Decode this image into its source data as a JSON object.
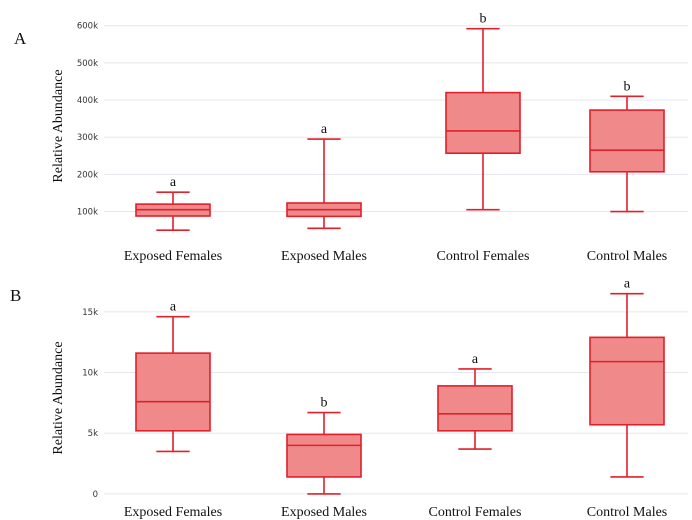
{
  "chart_data": [
    {
      "type": "box",
      "panel": "A",
      "ylabel": "Relative Abundance",
      "yticks": [
        {
          "v": 100000,
          "label": "100k"
        },
        {
          "v": 200000,
          "label": "200k"
        },
        {
          "v": 300000,
          "label": "300k"
        },
        {
          "v": 400000,
          "label": "400k"
        },
        {
          "v": 500000,
          "label": "500k"
        },
        {
          "v": 600000,
          "label": "600k"
        }
      ],
      "ylim": [
        45000,
        610000
      ],
      "categories": [
        "Exposed Females",
        "Exposed Males",
        "Control Females",
        "Control Males"
      ],
      "boxes": [
        {
          "min": 50000,
          "q1": 88000,
          "median": 105000,
          "q3": 120000,
          "max": 152000,
          "sig": "a"
        },
        {
          "min": 55000,
          "q1": 87000,
          "median": 105000,
          "q3": 123000,
          "max": 295000,
          "sig": "a"
        },
        {
          "min": 105000,
          "q1": 257000,
          "median": 317000,
          "q3": 420000,
          "max": 592000,
          "sig": "b"
        },
        {
          "min": 100000,
          "q1": 207000,
          "median": 265000,
          "q3": 373000,
          "max": 410000,
          "sig": "b"
        }
      ]
    },
    {
      "type": "box",
      "panel": "B",
      "ylabel": "Relative Abundance",
      "yticks": [
        {
          "v": 0,
          "label": "0"
        },
        {
          "v": 5000,
          "label": "5k"
        },
        {
          "v": 10000,
          "label": "10k"
        },
        {
          "v": 15000,
          "label": "15k"
        }
      ],
      "ylim": [
        -500,
        16800
      ],
      "categories": [
        "Exposed Females",
        "Exposed Males",
        "Control Females",
        "Control Males"
      ],
      "boxes": [
        {
          "min": 3500,
          "q1": 5200,
          "median": 7600,
          "q3": 11600,
          "max": 14600,
          "sig": "a"
        },
        {
          "min": 0,
          "q1": 1400,
          "median": 4000,
          "q3": 4900,
          "max": 6700,
          "sig": "b"
        },
        {
          "min": 3700,
          "q1": 5200,
          "median": 6600,
          "q3": 8900,
          "max": 10300,
          "sig": "a"
        },
        {
          "min": 1400,
          "q1": 5700,
          "median": 10900,
          "q3": 12900,
          "max": 16500,
          "sig": "a"
        }
      ]
    }
  ]
}
